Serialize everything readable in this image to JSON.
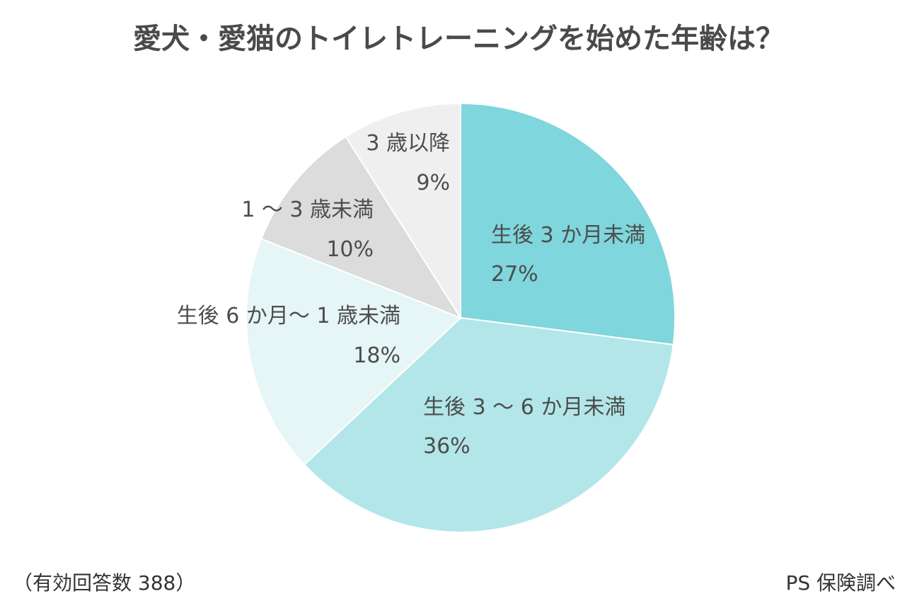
{
  "chart_data": {
    "type": "pie",
    "title": "愛犬・愛猫のトイレトレーニングを始めた年齢は？",
    "slices": [
      {
        "label": "生後 3 か月未満",
        "value": 27,
        "value_label": "27%",
        "color": "#7fd6dc"
      },
      {
        "label": "生後 3 ～ 6 か月未満",
        "value": 36,
        "value_label": "36%",
        "color": "#b3e6e8"
      },
      {
        "label": "生後 6 か月～ 1 歳未満",
        "value": 18,
        "value_label": "18%",
        "color": "#e6f5f6"
      },
      {
        "label": "1 ～ 3 歳未満",
        "value": 10,
        "value_label": "10%",
        "color": "#dcdcdc"
      },
      {
        "label": "3 歳以降",
        "value": 9,
        "value_label": "9%",
        "color": "#efefef"
      }
    ],
    "start_angle": "12 o'clock",
    "direction": "clockwise"
  },
  "footer": {
    "note_left": "（有効回答数 388）",
    "note_right": "PS 保険調べ"
  }
}
